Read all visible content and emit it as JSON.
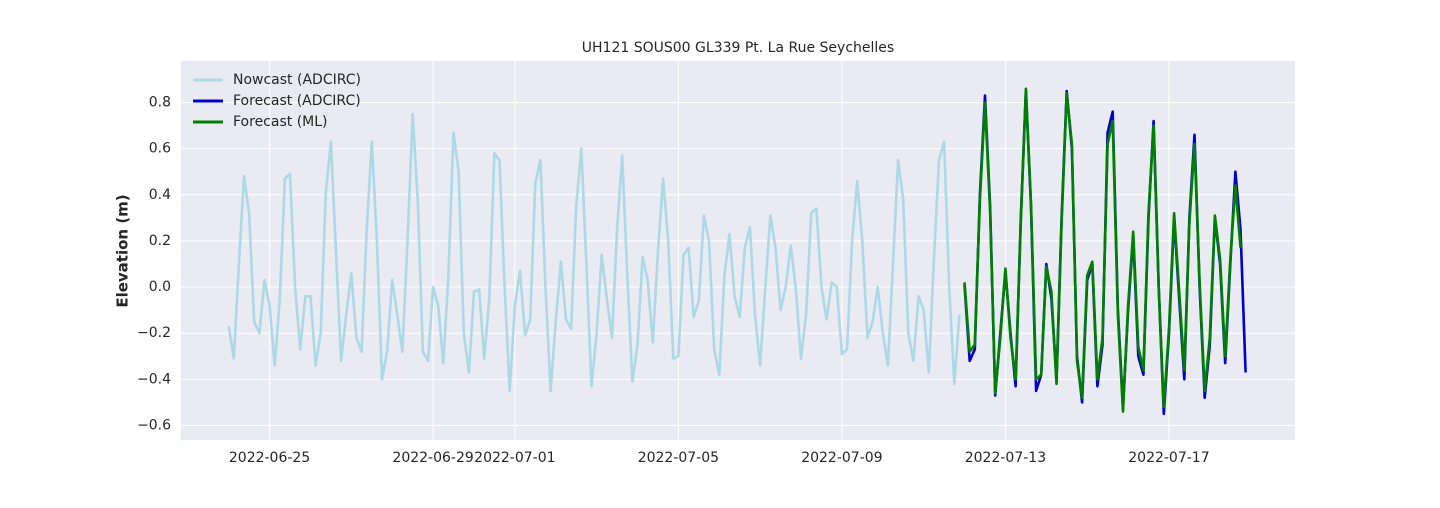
{
  "chart_data": {
    "type": "line",
    "title": "UH121 SOUS00 GL339 Pt. La Rue Seychelles",
    "y_label": "Elevation (m)",
    "xlim": [
      "2022-06-22 20:00",
      "2022-07-20 02:00"
    ],
    "xticks": [
      "2022-06-25",
      "2022-06-29",
      "2022-07-01",
      "2022-07-05",
      "2022-07-09",
      "2022-07-13",
      "2022-07-17"
    ],
    "ylim": [
      -0.663,
      0.98
    ],
    "yticks": [
      {
        "value": -0.6,
        "label": "−0.6"
      },
      {
        "value": -0.4,
        "label": "−0.4"
      },
      {
        "value": -0.2,
        "label": "−0.2"
      },
      {
        "value": 0,
        "label": "0.0"
      },
      {
        "value": 0.2,
        "label": "0.2"
      },
      {
        "value": 0.4,
        "label": "0.4"
      },
      {
        "value": 0.6,
        "label": "0.6"
      },
      {
        "value": 0.8,
        "label": "0.8"
      }
    ],
    "grid": true,
    "legend": "upper left",
    "series": [
      {
        "name": "Nowcast (ADCIRC)",
        "color": "#add8e6",
        "x": [
          "2022-06-24 00:00",
          "2022-06-24 03:00",
          "2022-06-24 06:00",
          "2022-06-24 09:00",
          "2022-06-24 12:00",
          "2022-06-24 15:00",
          "2022-06-24 18:00",
          "2022-06-24 21:00",
          "2022-06-25 00:00",
          "2022-06-25 03:00",
          "2022-06-25 06:00",
          "2022-06-25 09:00",
          "2022-06-25 12:00",
          "2022-06-25 15:00",
          "2022-06-25 18:00",
          "2022-06-25 21:00",
          "2022-06-26 00:00",
          "2022-06-26 03:00",
          "2022-06-26 06:00",
          "2022-06-26 09:00",
          "2022-06-26 12:00",
          "2022-06-26 15:00",
          "2022-06-26 18:00",
          "2022-06-26 21:00",
          "2022-06-27 00:00",
          "2022-06-27 03:00",
          "2022-06-27 06:00",
          "2022-06-27 09:00",
          "2022-06-27 12:00",
          "2022-06-27 15:00",
          "2022-06-27 18:00",
          "2022-06-27 21:00",
          "2022-06-28 00:00",
          "2022-06-28 03:00",
          "2022-06-28 06:00",
          "2022-06-28 09:00",
          "2022-06-28 12:00",
          "2022-06-28 15:00",
          "2022-06-28 18:00",
          "2022-06-28 21:00",
          "2022-06-29 00:00",
          "2022-06-29 03:00",
          "2022-06-29 06:00",
          "2022-06-29 09:00",
          "2022-06-29 12:00",
          "2022-06-29 15:00",
          "2022-06-29 18:00",
          "2022-06-29 21:00",
          "2022-06-30 00:00",
          "2022-06-30 03:00",
          "2022-06-30 06:00",
          "2022-06-30 09:00",
          "2022-06-30 12:00",
          "2022-06-30 15:00",
          "2022-06-30 18:00",
          "2022-06-30 21:00",
          "2022-07-01 00:00",
          "2022-07-01 03:00",
          "2022-07-01 06:00",
          "2022-07-01 09:00",
          "2022-07-01 12:00",
          "2022-07-01 15:00",
          "2022-07-01 18:00",
          "2022-07-01 21:00",
          "2022-07-02 00:00",
          "2022-07-02 03:00",
          "2022-07-02 06:00",
          "2022-07-02 09:00",
          "2022-07-02 12:00",
          "2022-07-02 15:00",
          "2022-07-02 18:00",
          "2022-07-02 21:00",
          "2022-07-03 00:00",
          "2022-07-03 03:00",
          "2022-07-03 06:00",
          "2022-07-03 09:00",
          "2022-07-03 12:00",
          "2022-07-03 15:00",
          "2022-07-03 18:00",
          "2022-07-03 21:00",
          "2022-07-04 00:00",
          "2022-07-04 03:00",
          "2022-07-04 06:00",
          "2022-07-04 09:00",
          "2022-07-04 12:00",
          "2022-07-04 15:00",
          "2022-07-04 18:00",
          "2022-07-04 21:00",
          "2022-07-05 00:00",
          "2022-07-05 03:00",
          "2022-07-05 06:00",
          "2022-07-05 09:00",
          "2022-07-05 12:00",
          "2022-07-05 15:00",
          "2022-07-05 18:00",
          "2022-07-05 21:00",
          "2022-07-06 00:00",
          "2022-07-06 03:00",
          "2022-07-06 06:00",
          "2022-07-06 09:00",
          "2022-07-06 12:00",
          "2022-07-06 15:00",
          "2022-07-06 18:00",
          "2022-07-06 21:00",
          "2022-07-07 00:00",
          "2022-07-07 03:00",
          "2022-07-07 06:00",
          "2022-07-07 09:00",
          "2022-07-07 12:00",
          "2022-07-07 15:00",
          "2022-07-07 18:00",
          "2022-07-07 21:00",
          "2022-07-08 00:00",
          "2022-07-08 03:00",
          "2022-07-08 06:00",
          "2022-07-08 09:00",
          "2022-07-08 12:00",
          "2022-07-08 15:00",
          "2022-07-08 18:00",
          "2022-07-08 21:00",
          "2022-07-09 00:00",
          "2022-07-09 03:00",
          "2022-07-09 06:00",
          "2022-07-09 09:00",
          "2022-07-09 12:00",
          "2022-07-09 15:00",
          "2022-07-09 18:00",
          "2022-07-09 21:00",
          "2022-07-10 00:00",
          "2022-07-10 03:00",
          "2022-07-10 06:00",
          "2022-07-10 09:00",
          "2022-07-10 12:00",
          "2022-07-10 15:00",
          "2022-07-10 18:00",
          "2022-07-10 21:00",
          "2022-07-11 00:00",
          "2022-07-11 03:00",
          "2022-07-11 06:00",
          "2022-07-11 09:00",
          "2022-07-11 12:00",
          "2022-07-11 15:00",
          "2022-07-11 18:00",
          "2022-07-11 21:00"
        ],
        "values": [
          -0.17,
          -0.31,
          0.1,
          0.48,
          0.32,
          -0.15,
          -0.2,
          0.03,
          -0.08,
          -0.34,
          -0.05,
          0.47,
          0.49,
          0.0,
          -0.27,
          -0.04,
          -0.04,
          -0.34,
          -0.2,
          0.41,
          0.63,
          0.15,
          -0.32,
          -0.12,
          0.06,
          -0.22,
          -0.28,
          0.25,
          0.63,
          0.2,
          -0.4,
          -0.28,
          0.03,
          -0.12,
          -0.28,
          0.2,
          0.75,
          0.37,
          -0.28,
          -0.32,
          0.0,
          -0.08,
          -0.33,
          0.05,
          0.67,
          0.5,
          -0.2,
          -0.37,
          -0.02,
          -0.01,
          -0.31,
          -0.05,
          0.58,
          0.55,
          0.0,
          -0.45,
          -0.08,
          0.07,
          -0.21,
          -0.14,
          0.45,
          0.55,
          0.0,
          -0.45,
          -0.15,
          0.11,
          -0.14,
          -0.18,
          0.35,
          0.6,
          0.1,
          -0.43,
          -0.2,
          0.14,
          -0.05,
          -0.22,
          0.25,
          0.57,
          0.05,
          -0.41,
          -0.25,
          0.13,
          0.03,
          -0.24,
          0.15,
          0.47,
          0.2,
          -0.31,
          -0.3,
          0.14,
          0.17,
          -0.13,
          -0.06,
          0.31,
          0.2,
          -0.27,
          -0.38,
          0.05,
          0.23,
          -0.04,
          -0.13,
          0.17,
          0.26,
          -0.12,
          -0.34,
          0.0,
          0.31,
          0.17,
          -0.1,
          0.0,
          0.18,
          -0.01,
          -0.31,
          -0.12,
          0.32,
          0.34,
          0.0,
          -0.14,
          0.02,
          0.0,
          -0.29,
          -0.27,
          0.2,
          0.46,
          0.2,
          -0.22,
          -0.15,
          0.0,
          -0.2,
          -0.34,
          0.1,
          0.55,
          0.38,
          -0.2,
          -0.32,
          -0.04,
          -0.1,
          -0.37,
          0.12,
          0.55,
          0.63,
          0.0,
          -0.42,
          -0.12
        ]
      },
      {
        "name": "Forecast (ADCIRC)",
        "color": "#0000cc",
        "x": [
          "2022-07-12 00:00",
          "2022-07-12 03:00",
          "2022-07-12 06:00",
          "2022-07-12 09:00",
          "2022-07-12 12:00",
          "2022-07-12 15:00",
          "2022-07-12 18:00",
          "2022-07-12 21:00",
          "2022-07-13 00:00",
          "2022-07-13 03:00",
          "2022-07-13 06:00",
          "2022-07-13 09:00",
          "2022-07-13 12:00",
          "2022-07-13 15:00",
          "2022-07-13 18:00",
          "2022-07-13 21:00",
          "2022-07-14 00:00",
          "2022-07-14 03:00",
          "2022-07-14 06:00",
          "2022-07-14 09:00",
          "2022-07-14 12:00",
          "2022-07-14 15:00",
          "2022-07-14 18:00",
          "2022-07-14 21:00",
          "2022-07-15 00:00",
          "2022-07-15 03:00",
          "2022-07-15 06:00",
          "2022-07-15 09:00",
          "2022-07-15 12:00",
          "2022-07-15 15:00",
          "2022-07-15 18:00",
          "2022-07-15 21:00",
          "2022-07-16 00:00",
          "2022-07-16 03:00",
          "2022-07-16 06:00",
          "2022-07-16 09:00",
          "2022-07-16 12:00",
          "2022-07-16 15:00",
          "2022-07-16 18:00",
          "2022-07-16 21:00",
          "2022-07-17 00:00",
          "2022-07-17 03:00",
          "2022-07-17 06:00",
          "2022-07-17 09:00",
          "2022-07-17 12:00",
          "2022-07-17 15:00",
          "2022-07-17 18:00",
          "2022-07-17 21:00",
          "2022-07-18 00:00",
          "2022-07-18 03:00",
          "2022-07-18 06:00",
          "2022-07-18 09:00",
          "2022-07-18 12:00",
          "2022-07-18 15:00",
          "2022-07-18 18:00",
          "2022-07-18 21:00"
        ],
        "values": [
          0.01,
          -0.32,
          -0.27,
          0.4,
          0.83,
          0.35,
          -0.47,
          -0.2,
          0.07,
          -0.2,
          -0.43,
          0.3,
          0.85,
          0.35,
          -0.45,
          -0.38,
          0.1,
          -0.05,
          -0.4,
          0.3,
          0.85,
          0.6,
          -0.3,
          -0.5,
          0.03,
          0.1,
          -0.43,
          -0.25,
          0.67,
          0.76,
          -0.1,
          -0.52,
          -0.1,
          0.22,
          -0.3,
          -0.38,
          0.3,
          0.72,
          0.0,
          -0.55,
          -0.2,
          0.3,
          -0.05,
          -0.4,
          0.3,
          0.66,
          0.0,
          -0.48,
          -0.25,
          0.3,
          0.1,
          -0.33,
          0.1,
          0.5,
          0.25,
          -0.37
        ]
      },
      {
        "name": "Forecast (ML)",
        "color": "#008000",
        "x": [
          "2022-07-12 00:00",
          "2022-07-12 03:00",
          "2022-07-12 06:00",
          "2022-07-12 09:00",
          "2022-07-12 12:00",
          "2022-07-12 15:00",
          "2022-07-12 18:00",
          "2022-07-12 21:00",
          "2022-07-13 00:00",
          "2022-07-13 03:00",
          "2022-07-13 06:00",
          "2022-07-13 09:00",
          "2022-07-13 12:00",
          "2022-07-13 15:00",
          "2022-07-13 18:00",
          "2022-07-13 21:00",
          "2022-07-14 00:00",
          "2022-07-14 03:00",
          "2022-07-14 06:00",
          "2022-07-14 09:00",
          "2022-07-14 12:00",
          "2022-07-14 15:00",
          "2022-07-14 18:00",
          "2022-07-14 21:00",
          "2022-07-15 00:00",
          "2022-07-15 03:00",
          "2022-07-15 06:00",
          "2022-07-15 09:00",
          "2022-07-15 12:00",
          "2022-07-15 15:00",
          "2022-07-15 18:00",
          "2022-07-15 21:00",
          "2022-07-16 00:00",
          "2022-07-16 03:00",
          "2022-07-16 06:00",
          "2022-07-16 09:00",
          "2022-07-16 12:00",
          "2022-07-16 15:00",
          "2022-07-16 18:00",
          "2022-07-16 21:00",
          "2022-07-17 00:00",
          "2022-07-17 03:00",
          "2022-07-17 06:00",
          "2022-07-17 09:00",
          "2022-07-17 12:00",
          "2022-07-17 15:00",
          "2022-07-17 18:00",
          "2022-07-17 21:00",
          "2022-07-18 00:00",
          "2022-07-18 03:00",
          "2022-07-18 06:00",
          "2022-07-18 09:00",
          "2022-07-18 12:00",
          "2022-07-18 15:00",
          "2022-07-18 18:00"
        ],
        "values": [
          0.02,
          -0.28,
          -0.25,
          0.38,
          0.8,
          0.33,
          -0.46,
          -0.22,
          0.08,
          -0.22,
          -0.4,
          0.28,
          0.86,
          0.36,
          -0.4,
          -0.38,
          0.09,
          -0.02,
          -0.42,
          0.28,
          0.84,
          0.62,
          -0.32,
          -0.48,
          0.05,
          0.11,
          -0.4,
          -0.22,
          0.62,
          0.72,
          -0.12,
          -0.54,
          -0.08,
          0.24,
          -0.26,
          -0.36,
          0.32,
          0.7,
          0.0,
          -0.52,
          -0.18,
          0.32,
          -0.02,
          -0.36,
          0.28,
          0.62,
          0.02,
          -0.45,
          -0.22,
          0.31,
          0.12,
          -0.3,
          0.12,
          0.44,
          0.17
        ]
      }
    ]
  }
}
